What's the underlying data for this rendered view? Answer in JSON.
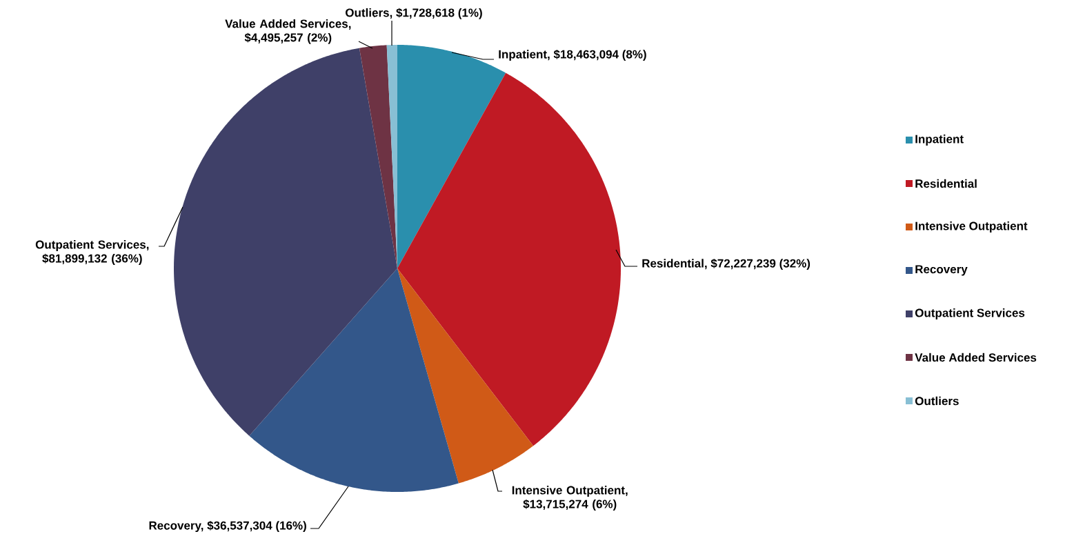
{
  "chart_data": {
    "type": "pie",
    "categories": [
      "Inpatient",
      "Residential",
      "Intensive Outpatient",
      "Recovery",
      "Outpatient Services",
      "Value Added Services",
      "Outliers"
    ],
    "values": [
      18463094,
      72227239,
      13715274,
      36537304,
      81899132,
      4495257,
      1728618
    ],
    "colors": [
      "#2a8fad",
      "#c01a24",
      "#d05a17",
      "#33578a",
      "#3f4068",
      "#6e3344",
      "#88bfd4"
    ],
    "value_labels": [
      "Inpatient, $18,463,094 (8%)",
      "Residential, $72,227,239 (32%)",
      "Intensive Outpatient, $13,715,274 (6%)",
      "Recovery, $36,537,304 (16%)",
      "Outpatient Services, $81,899,132 (36%)",
      "Value Added Services, $4,495,257 (2%)",
      "Outliers, $1,728,618 (1%)"
    ],
    "legend": "right"
  }
}
